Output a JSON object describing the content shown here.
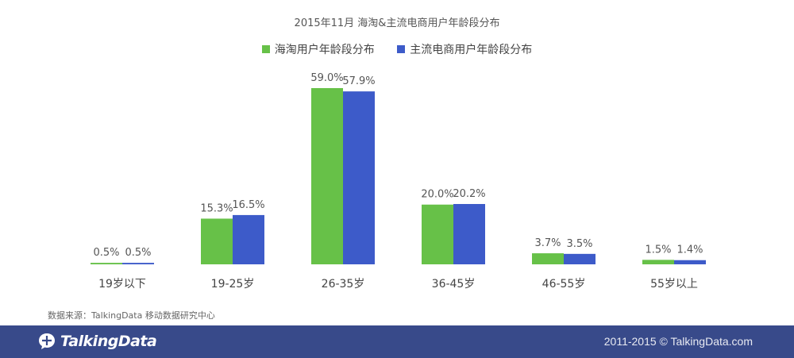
{
  "chart_data": {
    "type": "bar",
    "title": "2015年11月 海淘&主流电商用户年龄段分布",
    "categories": [
      "19岁以下",
      "19-25岁",
      "26-35岁",
      "36-45岁",
      "46-55岁",
      "55岁以上"
    ],
    "series": [
      {
        "name": "海淘用户年龄段分布",
        "values": [
          0.5,
          15.3,
          59.0,
          20.0,
          3.7,
          1.5
        ],
        "labels": [
          "0.5%",
          "15.3%",
          "59.0%",
          "20.0%",
          "3.7%",
          "1.5%"
        ],
        "color": "#67c148"
      },
      {
        "name": "主流电商用户年龄段分布",
        "values": [
          0.5,
          16.5,
          57.9,
          20.2,
          3.5,
          1.4
        ],
        "labels": [
          "0.5%",
          "16.5%",
          "57.9%",
          "20.2%",
          "3.5%",
          "1.4%"
        ],
        "color": "#3d5bc9"
      }
    ],
    "ylim": [
      0,
      59
    ],
    "grid": false,
    "legend_position": "top"
  },
  "source": "数据来源：TalkingData 移动数据研究中心",
  "footer": {
    "logo_text": "TalkingData",
    "logo_icon": "talkingdata-logo-icon",
    "copyright": "2011-2015 © TalkingData.com",
    "background": "#384a8a"
  }
}
